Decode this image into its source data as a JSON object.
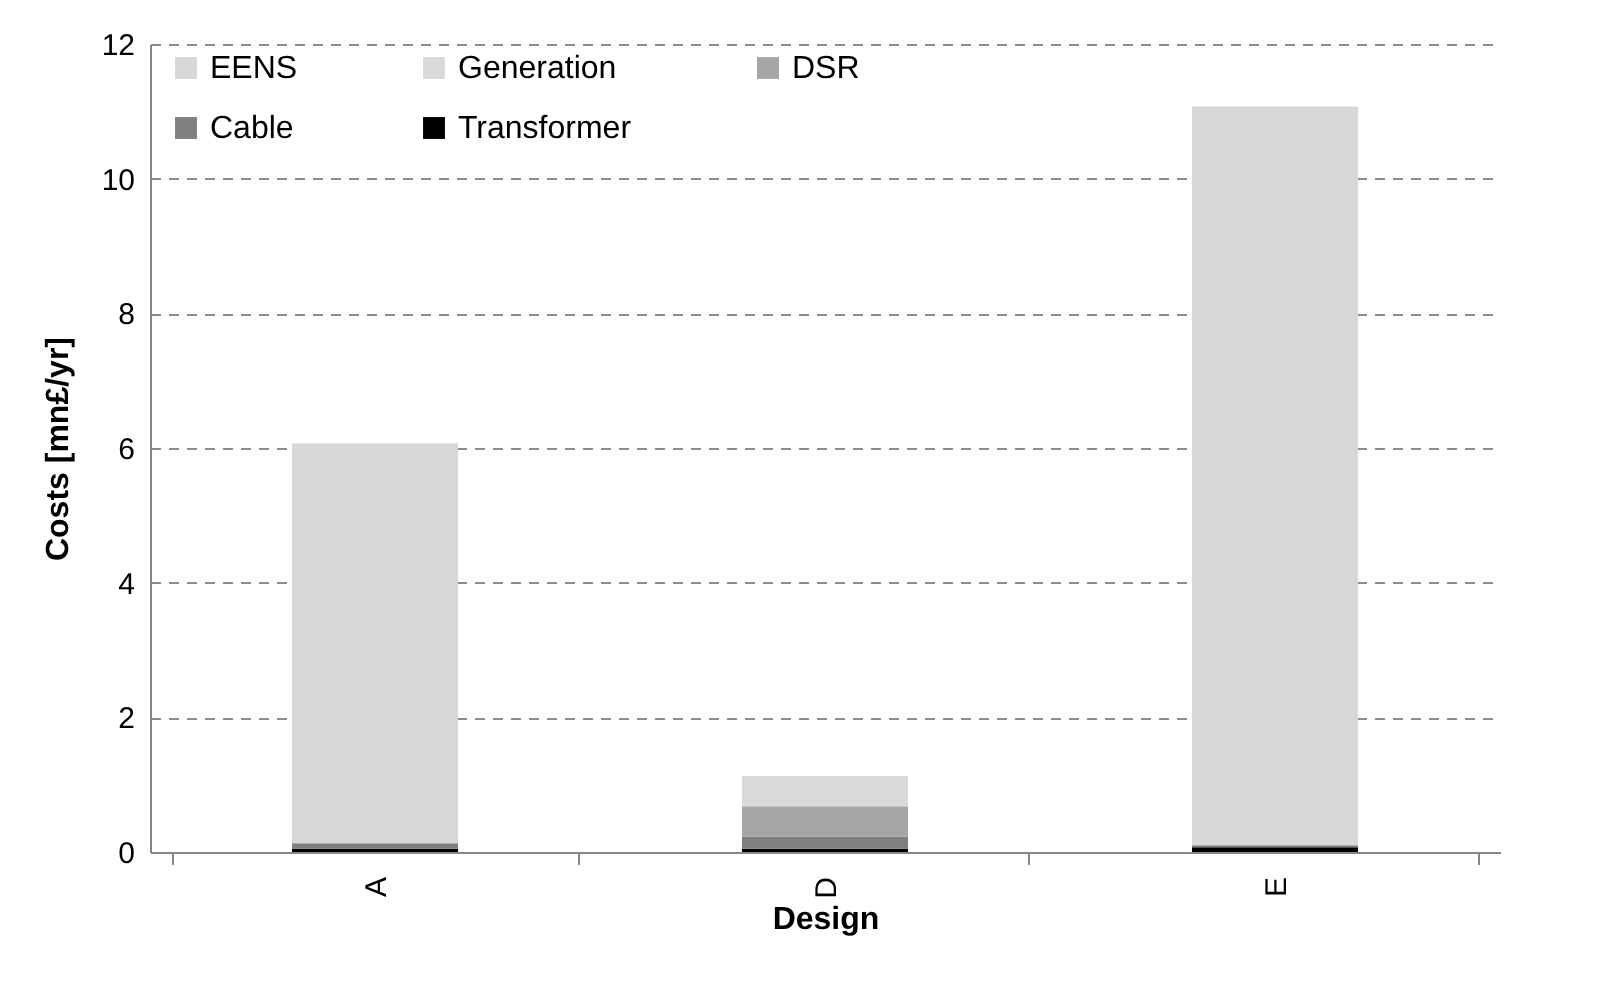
{
  "chart_data": {
    "type": "bar",
    "stacked": true,
    "xlabel": "Design",
    "ylabel": "Costs [mn£/yr]",
    "categories": [
      "A",
      "D",
      "E"
    ],
    "series": [
      {
        "name": "Transformer",
        "color": "#000000",
        "values": [
          0.05,
          0.05,
          0.07
        ]
      },
      {
        "name": "Cable",
        "color": "#7f7f7f",
        "values": [
          0.08,
          0.18,
          0.03
        ]
      },
      {
        "name": "DSR",
        "color": "#a6a6a6",
        "values": [
          0,
          0.45,
          0
        ]
      },
      {
        "name": "Generation",
        "color": "#d9d9d9",
        "values": [
          0,
          0.45,
          0
        ]
      },
      {
        "name": "EENS",
        "color": "#d8d8d8",
        "values": [
          5.94,
          0,
          10.97
        ]
      }
    ],
    "ylim": [
      0,
      12
    ],
    "yticks": [
      0,
      2,
      4,
      6,
      8,
      10,
      12
    ],
    "grid": "y",
    "legend": "top left"
  }
}
